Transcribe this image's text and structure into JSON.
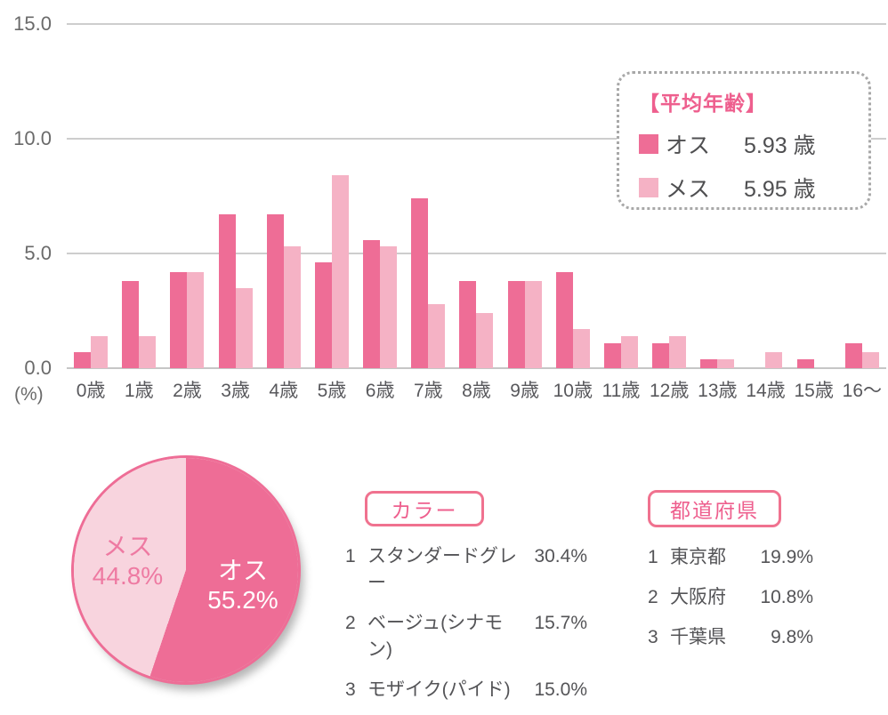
{
  "colors": {
    "male": "#ee6d96",
    "female": "#f5b2c5",
    "pie_female": "#f8d4de",
    "accent_text": "#ee5f8e",
    "pie_female_text": "#ee7aa2",
    "axis_text": "#6a6a6a",
    "grid": "#cdcdcd"
  },
  "chart_data": [
    {
      "type": "bar",
      "title": "",
      "categories": [
        "0歳",
        "1歳",
        "2歳",
        "3歳",
        "4歳",
        "5歳",
        "6歳",
        "7歳",
        "8歳",
        "9歳",
        "10歳",
        "11歳",
        "12歳",
        "13歳",
        "14歳",
        "15歳",
        "16〜"
      ],
      "series": [
        {
          "name": "オス",
          "values": [
            0.7,
            3.8,
            4.2,
            6.7,
            6.7,
            4.6,
            5.6,
            7.4,
            3.8,
            3.8,
            4.2,
            1.1,
            1.1,
            0.4,
            0,
            0.4,
            1.1
          ]
        },
        {
          "name": "メス",
          "values": [
            1.4,
            1.4,
            4.2,
            3.5,
            5.3,
            8.4,
            5.3,
            2.8,
            2.4,
            3.8,
            1.7,
            1.4,
            1.4,
            0.4,
            0.7,
            0,
            0.7
          ]
        }
      ],
      "xlabel": "",
      "ylabel": "(%)",
      "ylim": [
        0,
        15
      ],
      "yticks": [
        "15.0",
        "10.0",
        "5.0",
        "0.0"
      ],
      "grid": true,
      "legend_position": "top-right"
    },
    {
      "type": "pie",
      "labels": [
        "オス",
        "メス"
      ],
      "values": [
        55.2,
        44.8
      ],
      "slice_texts": [
        [
          "オス",
          "55.2%"
        ],
        [
          "メス",
          "44.8%"
        ]
      ],
      "start_angle": "12-oclock-clockwise"
    },
    {
      "type": "table",
      "title": "カラー",
      "rows": [
        {
          "rank": "1",
          "name": "スタンダードグレー",
          "value": "30.4%"
        },
        {
          "rank": "2",
          "name": "ベージュ(シナモン)",
          "value": "15.7%"
        },
        {
          "rank": "3",
          "name": "モザイク(パイド)",
          "value": "15.0%"
        }
      ]
    },
    {
      "type": "table",
      "title": "都道府県",
      "rows": [
        {
          "rank": "1",
          "name": "東京都",
          "value": "19.9%"
        },
        {
          "rank": "2",
          "name": "大阪府",
          "value": "10.8%"
        },
        {
          "rank": "3",
          "name": "千葉県",
          "value": "9.8%"
        }
      ]
    }
  ],
  "axis": {
    "unit": "(%)"
  },
  "legend_box": {
    "title": "【平均年齢】",
    "entries": [
      {
        "label": "オス",
        "value": "5.93 歳"
      },
      {
        "label": "メス",
        "value": "5.95 歳"
      }
    ]
  }
}
